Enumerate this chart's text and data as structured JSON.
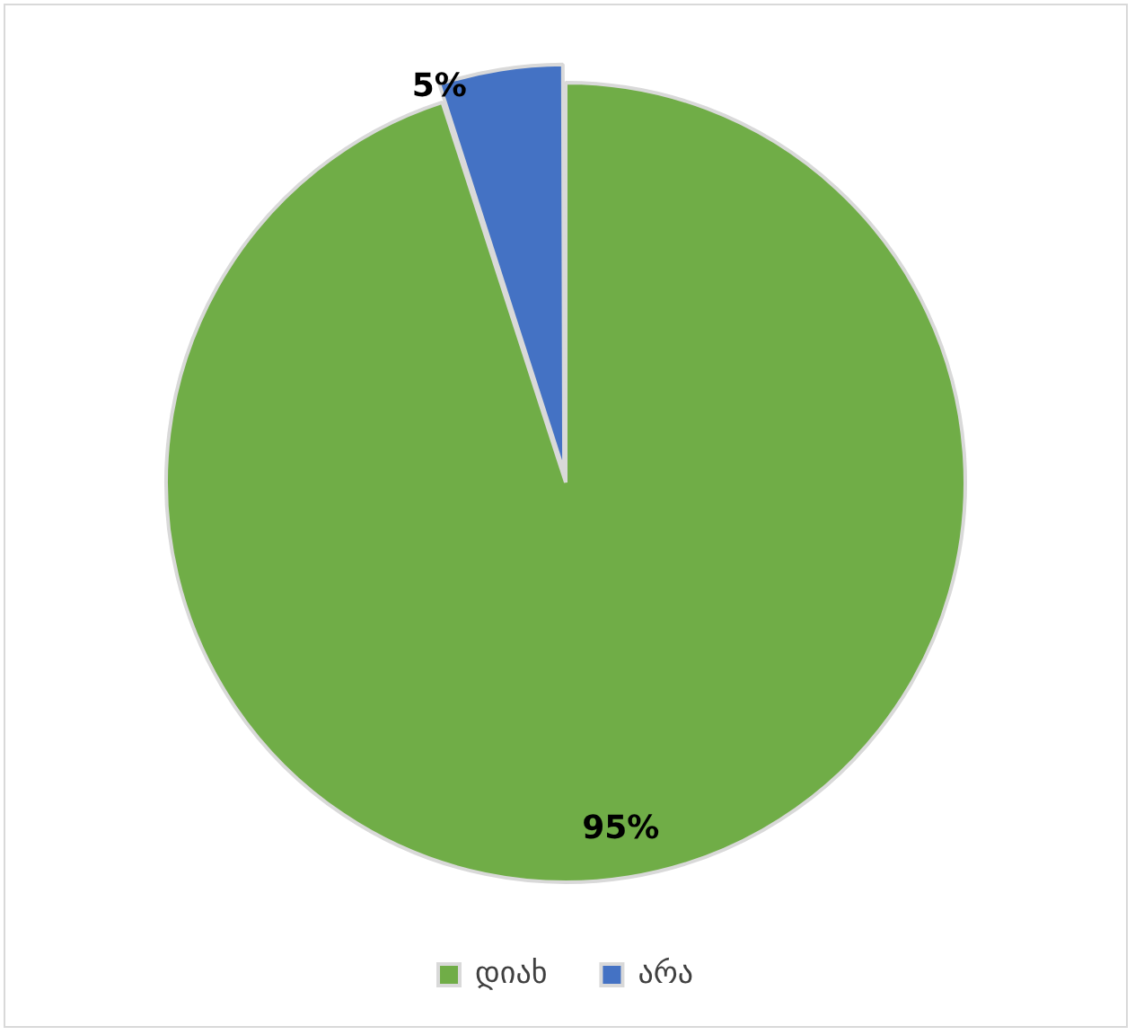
{
  "chart_data": {
    "type": "pie",
    "categories": [
      "დიახ",
      "არა"
    ],
    "values": [
      95,
      5
    ],
    "colors": [
      "#70ad47",
      "#4472c4"
    ],
    "value_labels": [
      "95%",
      "5%"
    ],
    "legend": "bottom"
  }
}
